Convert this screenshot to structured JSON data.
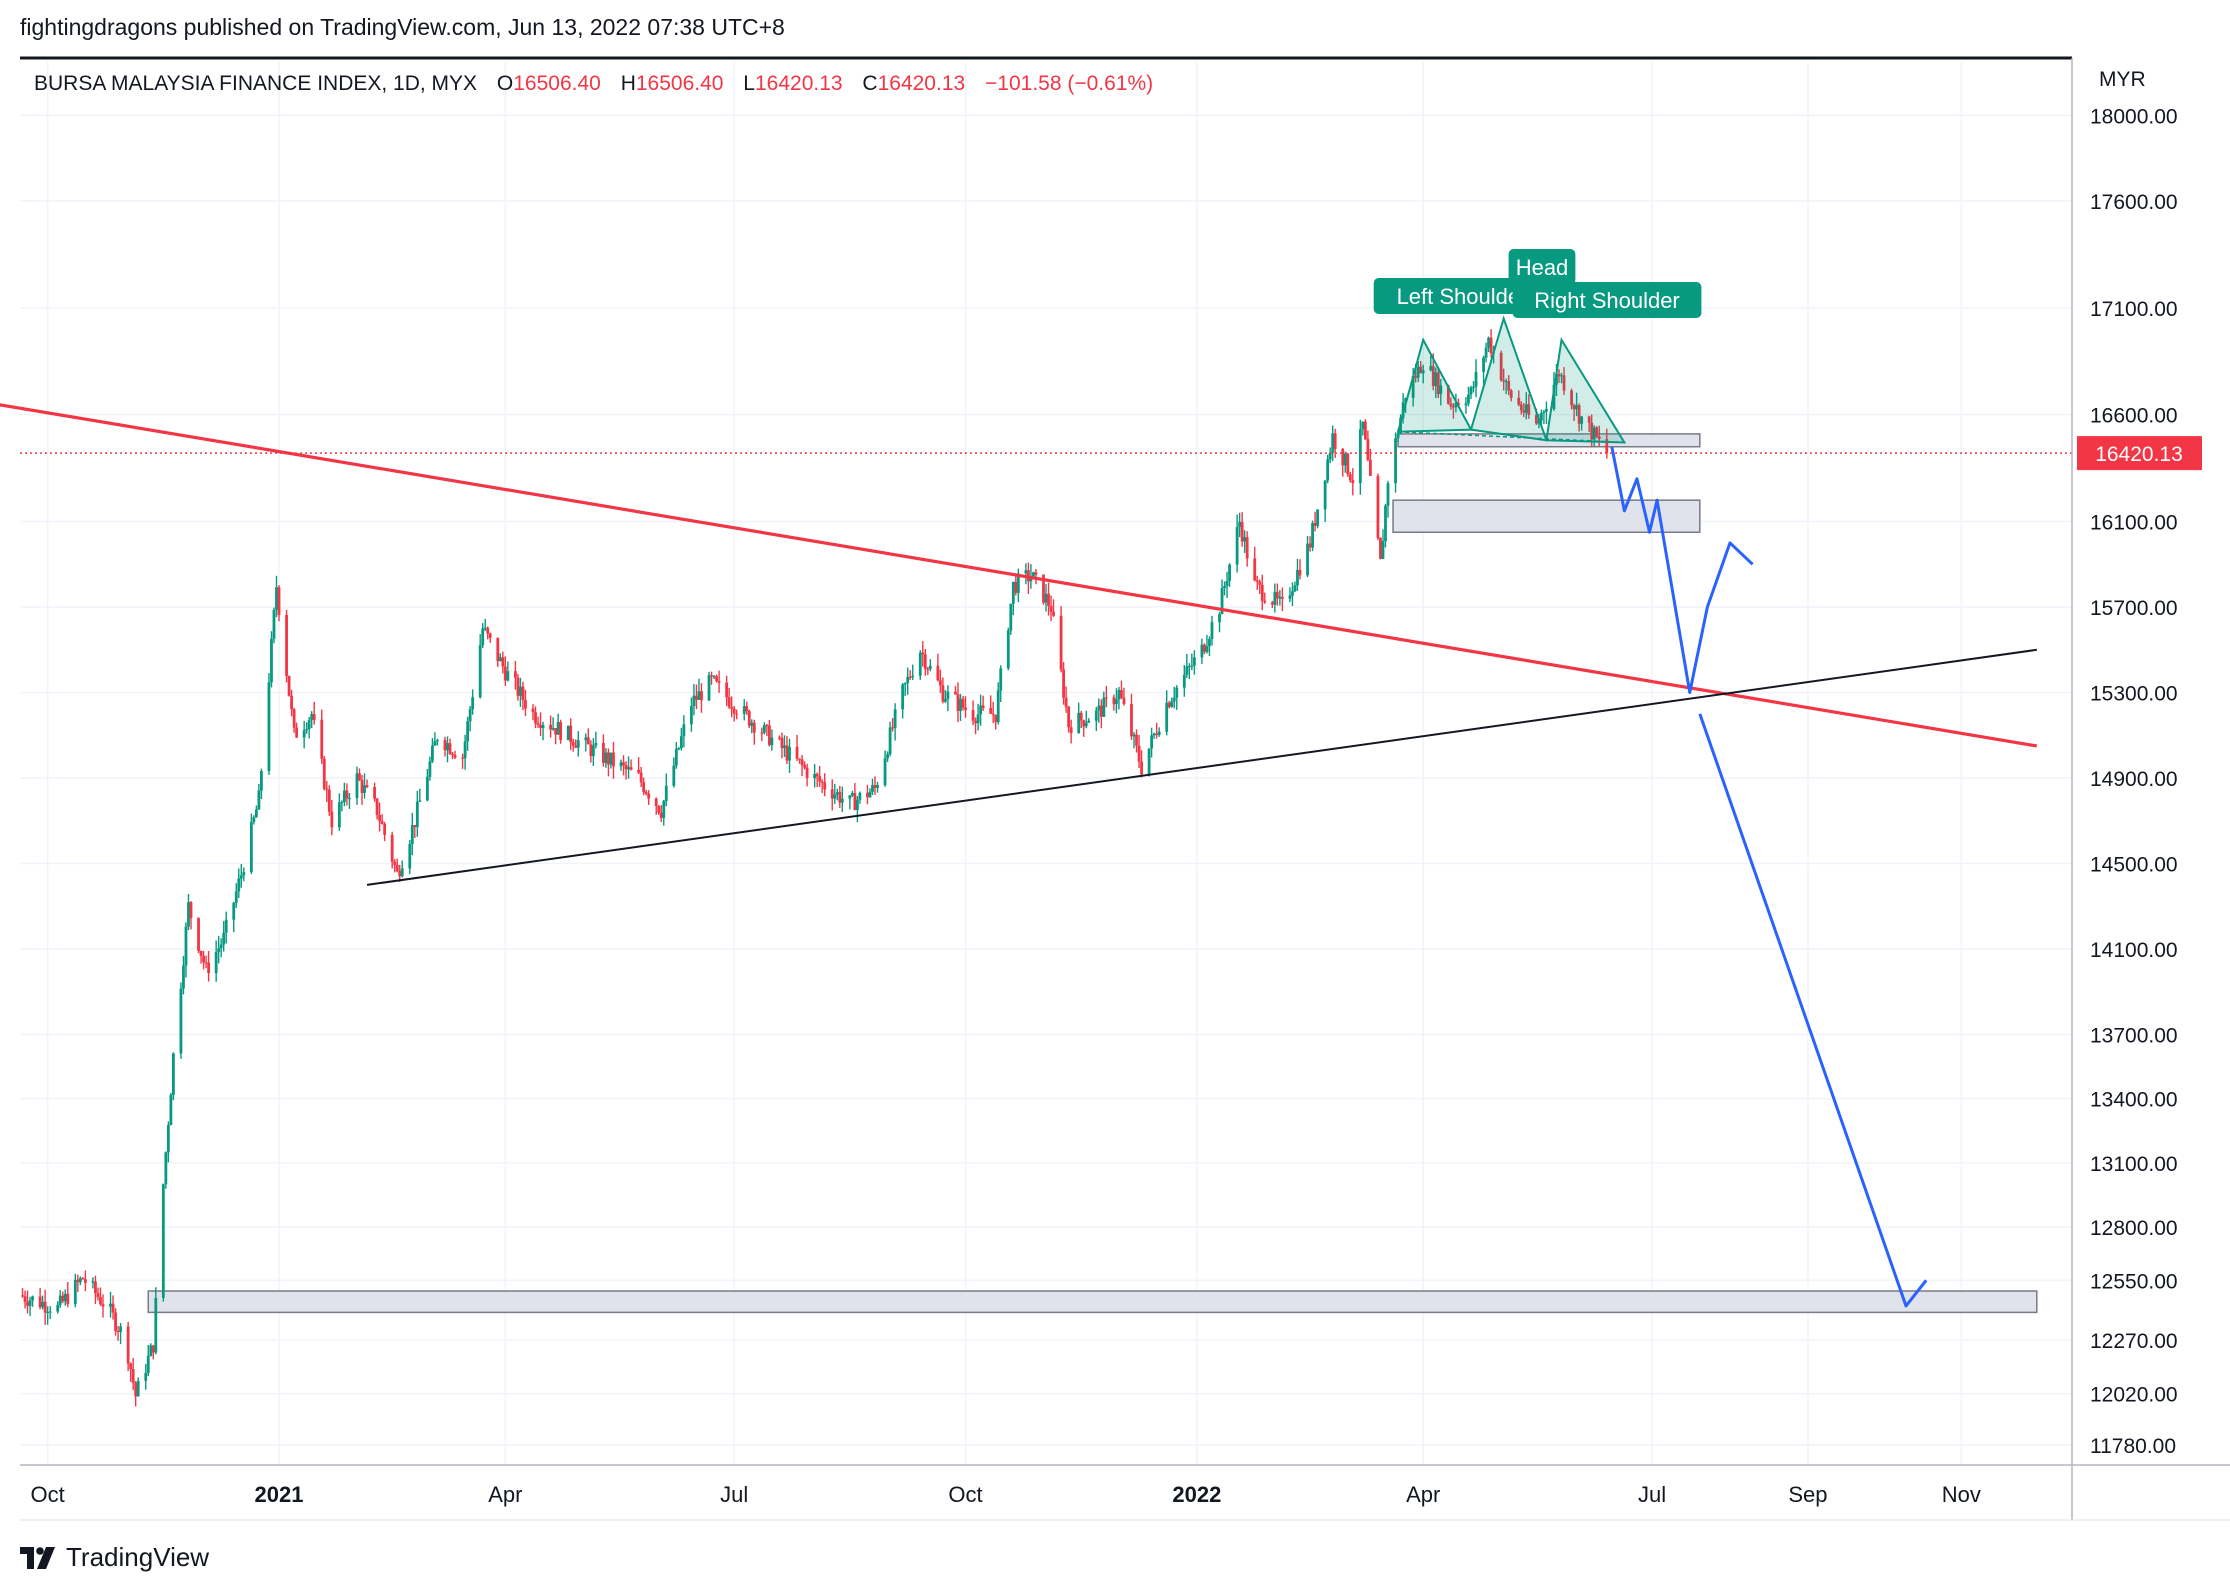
{
  "header": {
    "publisher_line": "fightingdragons published on TradingView.com, Jun 13, 2022 07:38 UTC+8"
  },
  "symbol": {
    "name": "BURSA MALAYSIA FINANCE INDEX, 1D, MYX",
    "open_label": "O",
    "open": "16506.40",
    "high_label": "H",
    "high": "16506.40",
    "low_label": "L",
    "low": "16420.13",
    "close_label": "C",
    "close": "16420.13",
    "change": "−101.58 (−0.61%)"
  },
  "price_axis": {
    "currency": "MYR",
    "last_price_tag": "16420.13"
  },
  "footer": {
    "brand": "TradingView"
  },
  "colors": {
    "down": "#f23645",
    "up": "#089981",
    "trendline_red": "#f23645",
    "projection_blue": "#2962ff",
    "pattern_teal": "#089981",
    "zone_fill": "#e0e3eb"
  },
  "annotations": {
    "left_shoulder": "Left Shoulder",
    "head": "Head",
    "right_shoulder": "Right Shoulder"
  },
  "chart_data": {
    "type": "candlestick",
    "title": "BURSA MALAYSIA FINANCE INDEX, 1D, MYX",
    "ylim": [
      11700,
      18250
    ],
    "y_ticks": [
      18000,
      17600,
      17100,
      16600,
      16100,
      15700,
      15300,
      14900,
      14500,
      14100,
      13700,
      13400,
      13100,
      12800,
      12550,
      12270,
      12020,
      11780
    ],
    "y_tick_labels": [
      "18000.00",
      "17600.00",
      "17100.00",
      "16600.00",
      "16100.00",
      "15700.00",
      "15300.00",
      "14900.00",
      "14500.00",
      "14100.00",
      "13700.00",
      "13400.00",
      "13100.00",
      "12800.00",
      "12550.00",
      "12270.00",
      "12020.00",
      "11780.00"
    ],
    "x_tick_labels": [
      "Oct",
      "2021",
      "Apr",
      "Jul",
      "Oct",
      "2022",
      "Apr",
      "Jul",
      "Sep",
      "Nov"
    ],
    "x_tick_dates": [
      "2020-10-01",
      "2021-01-01",
      "2021-04-01",
      "2021-07-01",
      "2021-10-01",
      "2022-01-01",
      "2022-04-01",
      "2022-07-01",
      "2022-09-01",
      "2022-11-01"
    ],
    "last_close": 16420.13,
    "price_path": [
      [
        "2020-09-20",
        12480
      ],
      [
        "2020-10-05",
        12420
      ],
      [
        "2020-10-15",
        12560
      ],
      [
        "2020-10-25",
        12420
      ],
      [
        "2020-11-01",
        12270
      ],
      [
        "2020-11-05",
        12010
      ],
      [
        "2020-11-12",
        12250
      ],
      [
        "2020-11-16",
        13000
      ],
      [
        "2020-11-20",
        13600
      ],
      [
        "2020-11-26",
        14300
      ],
      [
        "2020-12-03",
        14000
      ],
      [
        "2020-12-10",
        14150
      ],
      [
        "2020-12-17",
        14450
      ],
      [
        "2020-12-24",
        14800
      ],
      [
        "2020-12-31",
        15800
      ],
      [
        "2021-01-07",
        15100
      ],
      [
        "2021-01-14",
        15200
      ],
      [
        "2021-01-22",
        14700
      ],
      [
        "2021-02-01",
        14900
      ],
      [
        "2021-02-09",
        14750
      ],
      [
        "2021-02-17",
        14450
      ],
      [
        "2021-02-24",
        14700
      ],
      [
        "2021-03-05",
        15100
      ],
      [
        "2021-03-15",
        15000
      ],
      [
        "2021-03-23",
        15600
      ],
      [
        "2021-04-01",
        15400
      ],
      [
        "2021-04-12",
        15200
      ],
      [
        "2021-04-26",
        15100
      ],
      [
        "2021-05-10",
        15000
      ],
      [
        "2021-05-24",
        14900
      ],
      [
        "2021-06-02",
        14750
      ],
      [
        "2021-06-14",
        15250
      ],
      [
        "2021-06-22",
        15350
      ],
      [
        "2021-07-05",
        15200
      ],
      [
        "2021-07-19",
        15050
      ],
      [
        "2021-08-02",
        14900
      ],
      [
        "2021-08-16",
        14780
      ],
      [
        "2021-08-26",
        14850
      ],
      [
        "2021-09-06",
        15300
      ],
      [
        "2021-09-13",
        15500
      ],
      [
        "2021-09-22",
        15300
      ],
      [
        "2021-10-04",
        15200
      ],
      [
        "2021-10-13",
        15200
      ],
      [
        "2021-10-20",
        15800
      ],
      [
        "2021-10-27",
        15850
      ],
      [
        "2021-11-04",
        15700
      ],
      [
        "2021-11-11",
        15150
      ],
      [
        "2021-11-22",
        15200
      ],
      [
        "2021-12-01",
        15300
      ],
      [
        "2021-12-10",
        14950
      ],
      [
        "2021-12-20",
        15250
      ],
      [
        "2022-01-03",
        15500
      ],
      [
        "2022-01-10",
        15700
      ],
      [
        "2022-01-18",
        16100
      ],
      [
        "2022-01-24",
        15800
      ],
      [
        "2022-02-04",
        15700
      ],
      [
        "2022-02-15",
        16000
      ],
      [
        "2022-02-24",
        16500
      ],
      [
        "2022-03-04",
        16300
      ],
      [
        "2022-03-08",
        16550
      ],
      [
        "2022-03-15",
        15900
      ],
      [
        "2022-03-18",
        16300
      ],
      [
        "2022-03-25",
        16700
      ],
      [
        "2022-04-01",
        16850
      ],
      [
        "2022-04-12",
        16650
      ],
      [
        "2022-04-20",
        16700
      ],
      [
        "2022-04-27",
        16950
      ],
      [
        "2022-05-05",
        16700
      ],
      [
        "2022-05-16",
        16550
      ],
      [
        "2022-05-25",
        16800
      ],
      [
        "2022-06-02",
        16600
      ],
      [
        "2022-06-13",
        16420.13
      ]
    ],
    "trendlines": [
      {
        "color": "red",
        "from": [
          "2020-09-10",
          16650
        ],
        "to": [
          "2022-12-01",
          15050
        ]
      },
      {
        "color": "black",
        "from": [
          "2021-02-05",
          14400
        ],
        "to": [
          "2022-12-01",
          15500
        ]
      }
    ],
    "zones": [
      {
        "from": "2020-11-10",
        "to": "2022-12-01",
        "low": 12400,
        "high": 12500
      },
      {
        "from": "2022-03-20",
        "to": "2022-07-20",
        "low": 16050,
        "high": 16200
      },
      {
        "from": "2022-03-22",
        "to": "2022-07-20",
        "low": 16450,
        "high": 16510
      }
    ],
    "projection_path": [
      [
        "2022-06-15",
        16450
      ],
      [
        "2022-06-20",
        16150
      ],
      [
        "2022-06-25",
        16300
      ],
      [
        "2022-06-30",
        16050
      ],
      [
        "2022-07-03",
        16200
      ],
      [
        "2022-07-16",
        15300
      ],
      [
        "2022-07-23",
        15700
      ],
      [
        "2022-08-01",
        16000
      ],
      [
        "2022-08-10",
        15900
      ]
    ],
    "projection_path_2": [
      [
        "2022-07-20",
        15200
      ],
      [
        "2022-10-10",
        12430
      ],
      [
        "2022-10-18",
        12550
      ]
    ],
    "head_and_shoulders": {
      "points": [
        [
          "2022-03-22",
          16520
        ],
        [
          "2022-04-01",
          16950
        ],
        [
          "2022-04-20",
          16530
        ],
        [
          "2022-05-03",
          17050
        ],
        [
          "2022-05-20",
          16480
        ],
        [
          "2022-05-26",
          16950
        ],
        [
          "2022-06-20",
          16470
        ]
      ]
    }
  }
}
